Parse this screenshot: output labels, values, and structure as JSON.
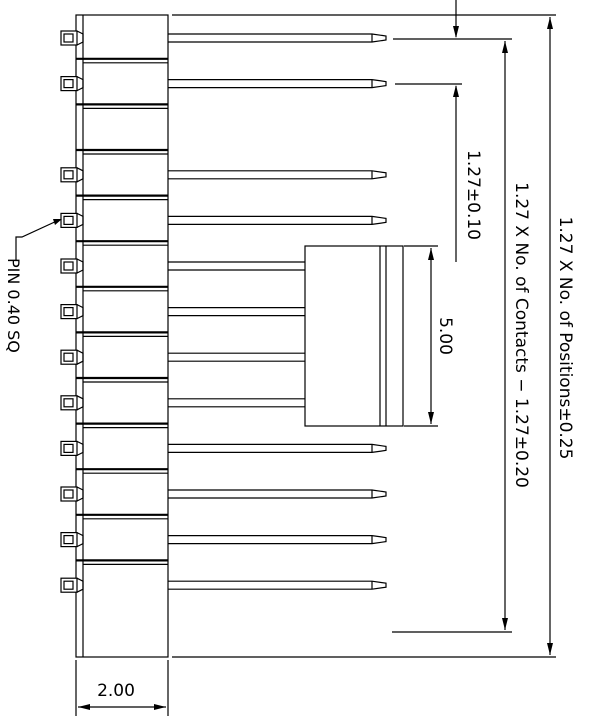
{
  "drawing": {
    "pin_count": 13,
    "missing_pin_positions": [
      2
    ],
    "annotations": {
      "pin_size": "PIN 0.40 SQ",
      "width": "2.00",
      "pitch": "1.27±0.10",
      "shroud": "5.00",
      "contacts": "1.27 X No. of Contacts − 1.27±0.20",
      "positions": "1.27 X No. of Positions±0.25"
    }
  }
}
